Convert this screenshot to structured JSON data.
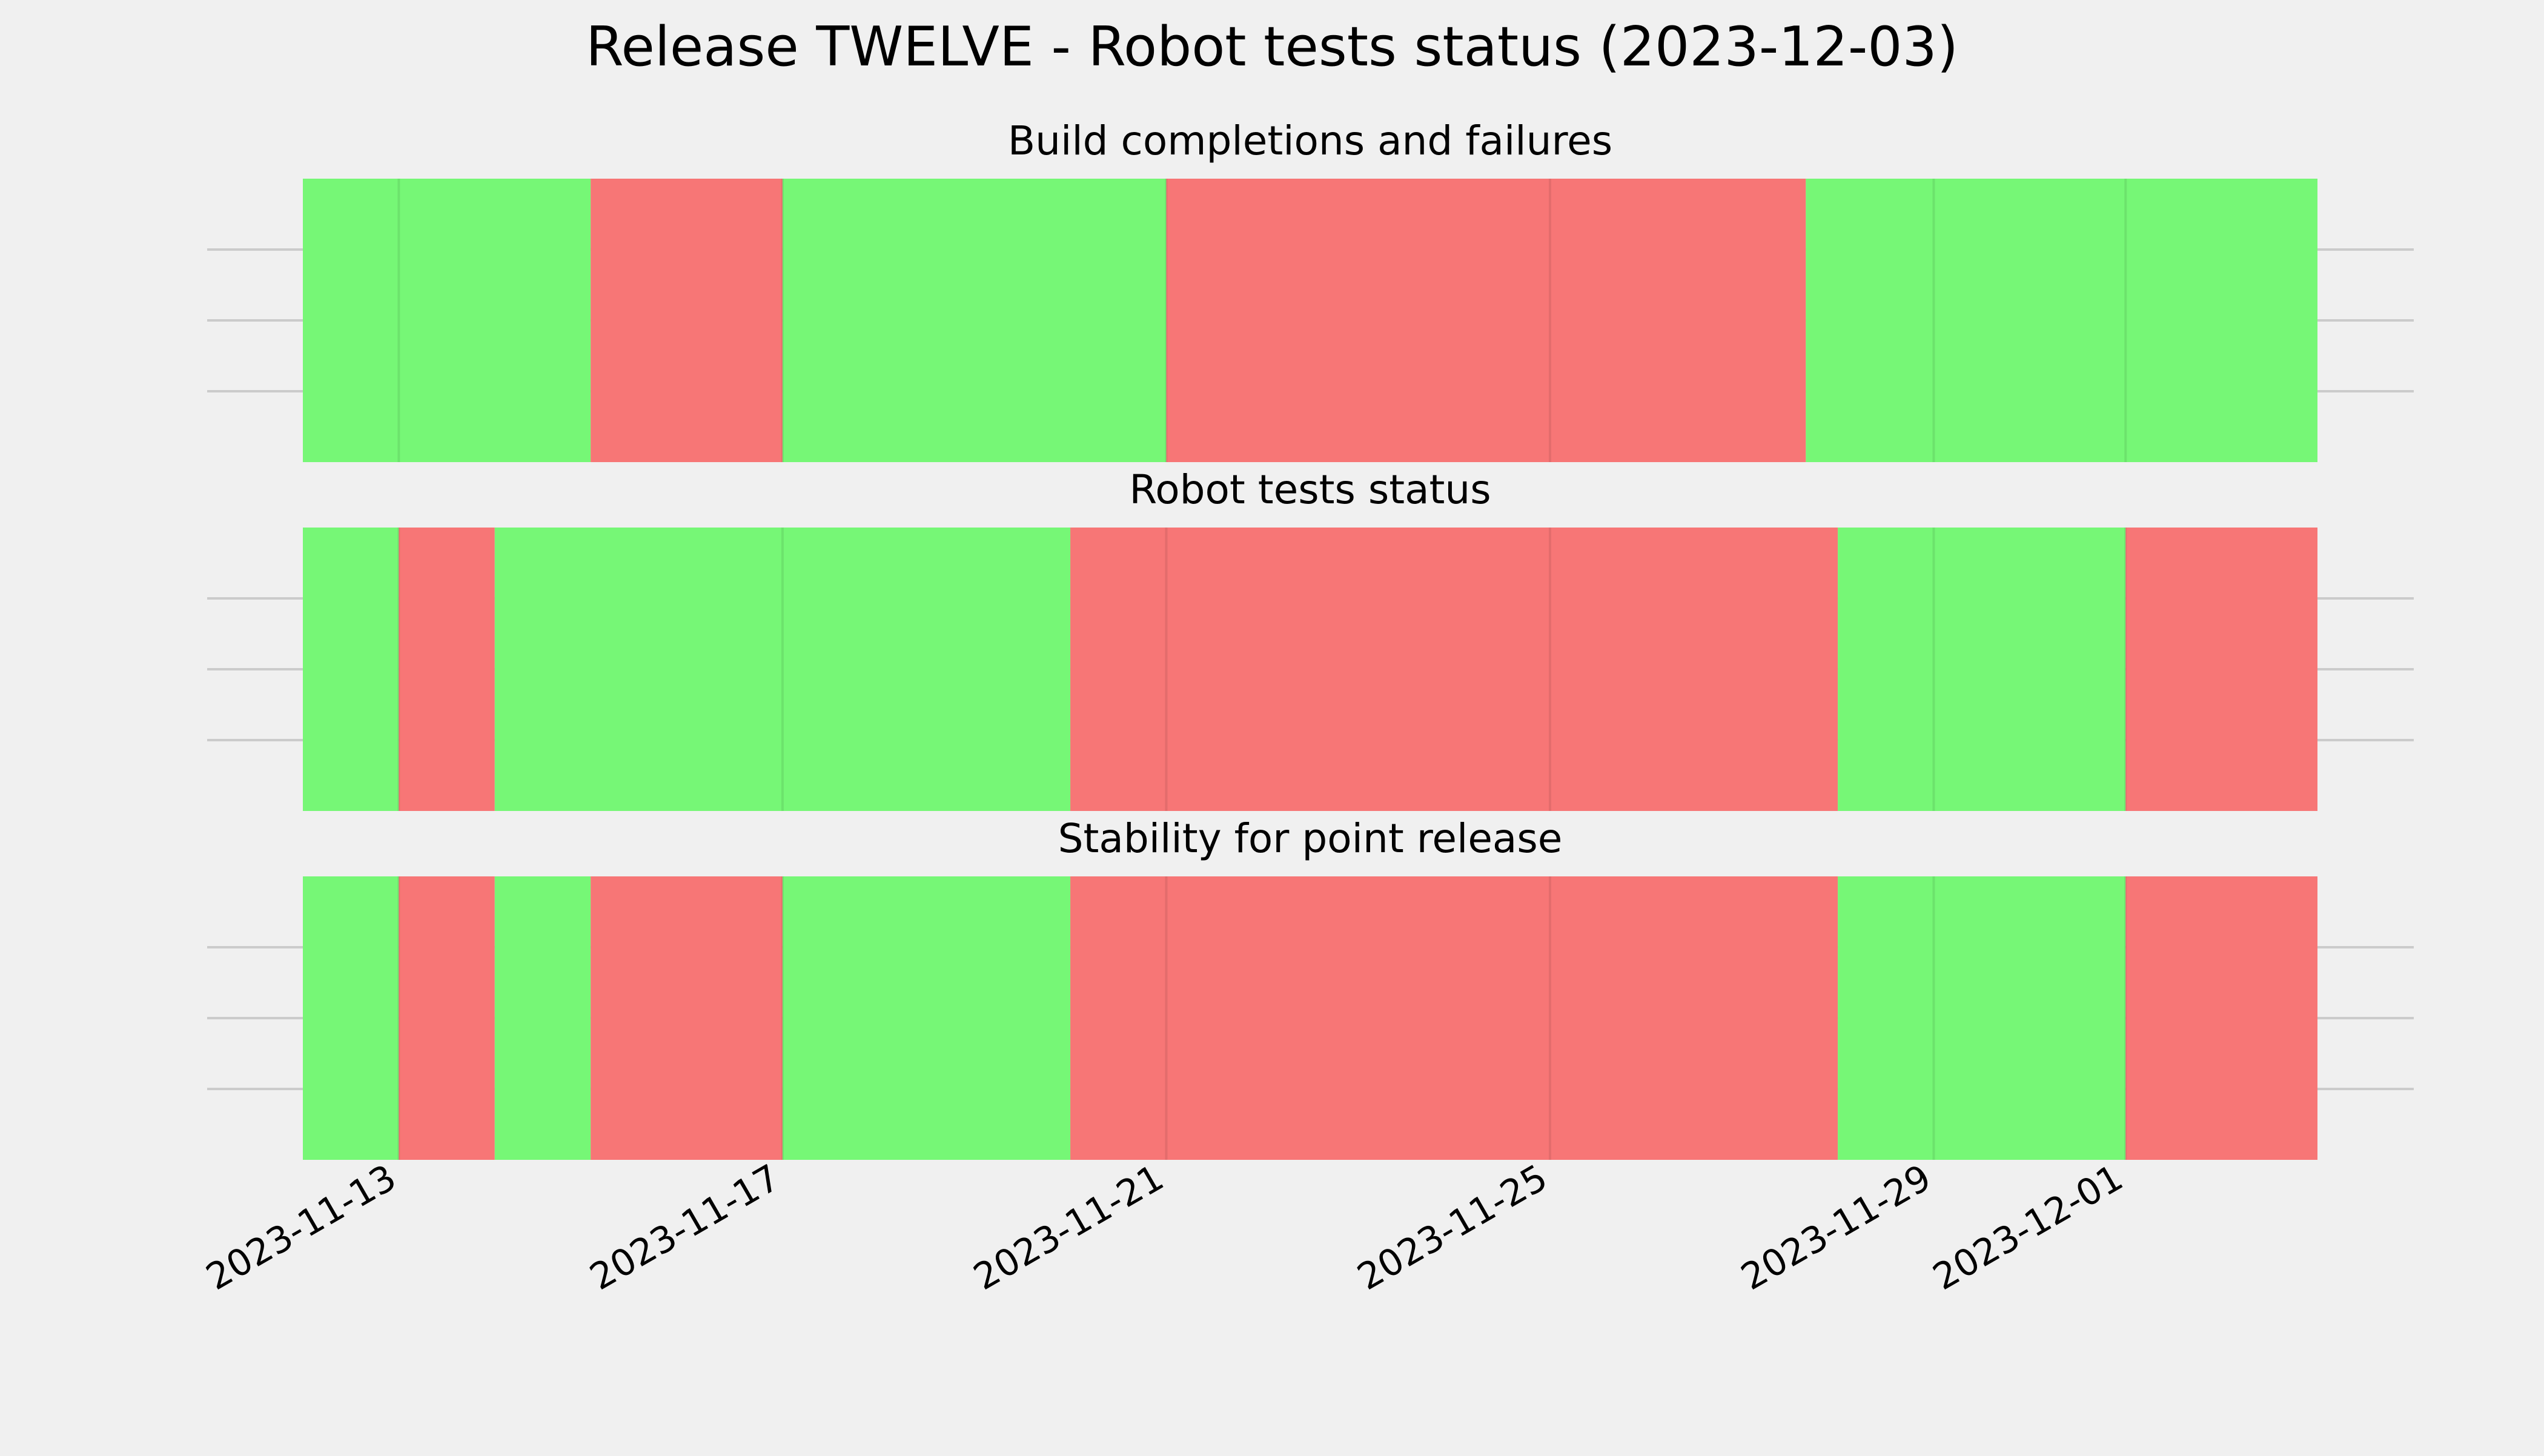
{
  "title": "Release TWELVE - Robot tests status (2023-12-03)",
  "colors": {
    "background": "#f0f0f0",
    "pass": "#76f776",
    "fail": "#f77676",
    "grid": "#cbcbcb",
    "text": "#000000"
  },
  "chart_data": [
    {
      "type": "timeline",
      "title": "Build completions and failures",
      "xlim": [
        "2023-11-12",
        "2023-12-03"
      ],
      "grid": true,
      "segments": [
        {
          "start": "2023-11-12",
          "end": "2023-11-15",
          "status": "pass"
        },
        {
          "start": "2023-11-15",
          "end": "2023-11-17",
          "status": "fail"
        },
        {
          "start": "2023-11-17",
          "end": "2023-11-21",
          "status": "pass"
        },
        {
          "start": "2023-11-21",
          "end": "2023-11-27 16:00",
          "status": "fail"
        },
        {
          "start": "2023-11-27 16:00",
          "end": "2023-12-03",
          "status": "pass"
        }
      ]
    },
    {
      "type": "timeline",
      "title": "Robot tests status",
      "xlim": [
        "2023-11-12",
        "2023-12-03"
      ],
      "grid": true,
      "segments": [
        {
          "start": "2023-11-12",
          "end": "2023-11-13",
          "status": "pass"
        },
        {
          "start": "2023-11-13",
          "end": "2023-11-14",
          "status": "fail"
        },
        {
          "start": "2023-11-14",
          "end": "2023-11-20",
          "status": "pass"
        },
        {
          "start": "2023-11-20",
          "end": "2023-11-28",
          "status": "fail"
        },
        {
          "start": "2023-11-28",
          "end": "2023-12-01",
          "status": "pass"
        },
        {
          "start": "2023-12-01",
          "end": "2023-12-03",
          "status": "fail"
        },
        {
          "start": "2023-12-03",
          "end": "2023-12-03 15:00",
          "status": "pass"
        }
      ]
    },
    {
      "type": "timeline",
      "title": "Stability for point release",
      "xlim": [
        "2023-11-12",
        "2023-12-03"
      ],
      "grid": true,
      "segments": [
        {
          "start": "2023-11-12",
          "end": "2023-11-13",
          "status": "pass"
        },
        {
          "start": "2023-11-13",
          "end": "2023-11-14",
          "status": "fail"
        },
        {
          "start": "2023-11-14",
          "end": "2023-11-15",
          "status": "pass"
        },
        {
          "start": "2023-11-15",
          "end": "2023-11-17",
          "status": "fail"
        },
        {
          "start": "2023-11-17",
          "end": "2023-11-20",
          "status": "pass"
        },
        {
          "start": "2023-11-20",
          "end": "2023-11-28",
          "status": "fail"
        },
        {
          "start": "2023-11-28",
          "end": "2023-12-01",
          "status": "pass"
        },
        {
          "start": "2023-12-01",
          "end": "2023-12-03",
          "status": "fail"
        },
        {
          "start": "2023-12-03",
          "end": "2023-12-03 15:00",
          "status": "pass"
        }
      ]
    }
  ],
  "x_ticks": [
    "2023-11-13",
    "2023-11-17",
    "2023-11-21",
    "2023-11-25",
    "2023-11-29",
    "2023-12-01"
  ]
}
